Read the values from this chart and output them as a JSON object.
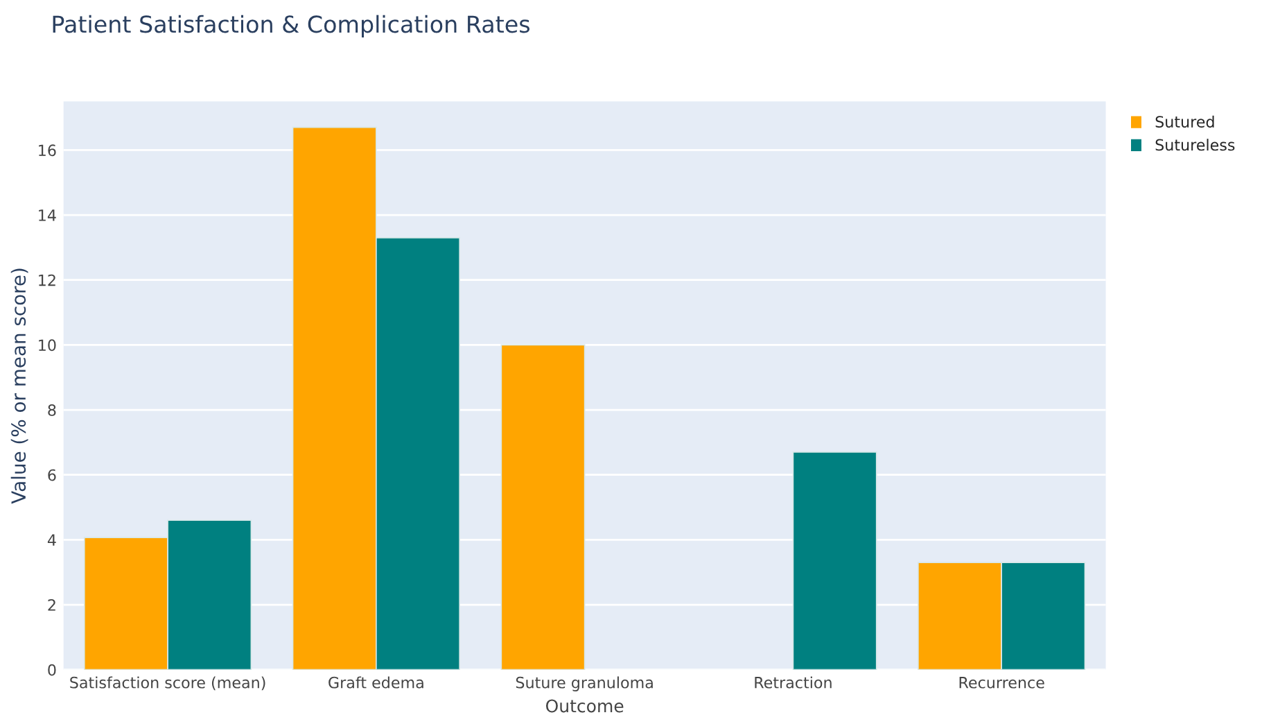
{
  "chart_data": {
    "type": "bar",
    "title": "Patient Satisfaction & Complication Rates",
    "xlabel": "Outcome",
    "ylabel": "Value (% or mean score)",
    "categories": [
      "Satisfaction score (mean)",
      "Graft edema",
      "Suture granuloma",
      "Retraction",
      "Recurrence"
    ],
    "series": [
      {
        "name": "Sutured",
        "color": "#ffa500",
        "values": [
          4.07,
          16.7,
          10.0,
          0,
          3.3
        ]
      },
      {
        "name": "Sutureless",
        "color": "#008080",
        "values": [
          4.6,
          13.3,
          0,
          6.7,
          3.3
        ]
      }
    ],
    "ylim": [
      0,
      17.5
    ],
    "yticks": [
      0,
      2,
      4,
      6,
      8,
      10,
      12,
      14,
      16
    ],
    "grid": "y",
    "legend": "top right"
  }
}
